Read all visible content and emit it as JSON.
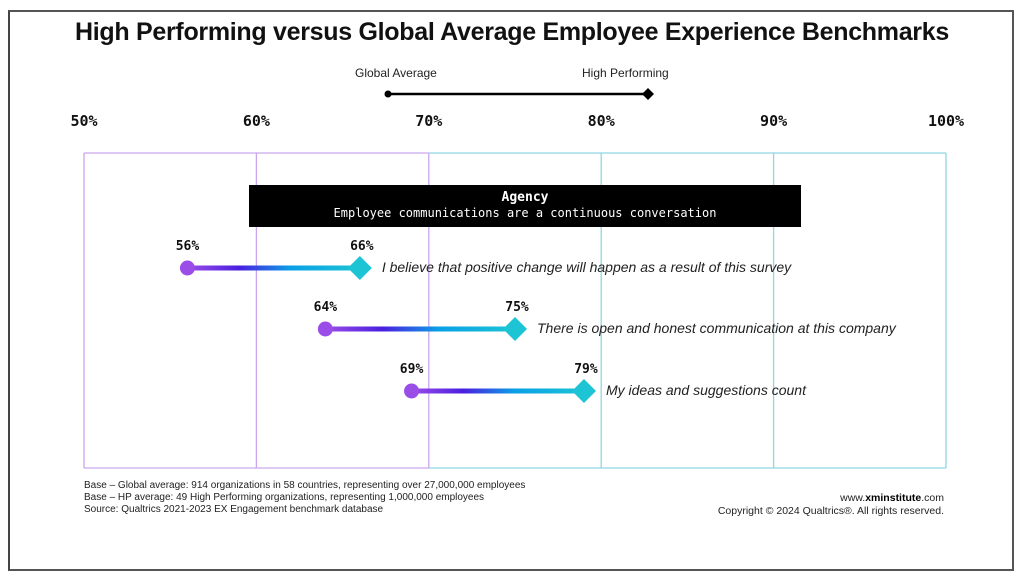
{
  "chart_data": {
    "type": "dumbbell",
    "title": "High Performing versus Global Average Employee Experience Benchmarks",
    "legend": {
      "start_label": "Global Average",
      "end_label": "High Performing",
      "placement": "top-center"
    },
    "x_ticks": [
      "50%",
      "60%",
      "70%",
      "80%",
      "90%",
      "100%"
    ],
    "xlim": [
      50,
      100
    ],
    "grid": true,
    "section": {
      "title": "Agency",
      "subtitle": "Employee communications are a continuous conversation"
    },
    "rows": [
      {
        "label": "I believe that positive change will happen as a result of this survey",
        "global_average": 56,
        "high_performing": 66,
        "global_label": "56%",
        "hp_label": "66%"
      },
      {
        "label": "There is open and honest communication at this company",
        "global_average": 64,
        "high_performing": 75,
        "global_label": "64%",
        "hp_label": "75%"
      },
      {
        "label": "My ideas and suggestions count",
        "global_average": 69,
        "high_performing": 79,
        "global_label": "69%",
        "hp_label": "79%"
      }
    ],
    "colors": {
      "start": "#9b4de8",
      "mid": "#4a1fe0",
      "end": "#1cc4d4",
      "grid_low": "#c9a6ee",
      "grid_high": "#8fd7e4"
    }
  },
  "footer": {
    "notes": [
      "Base – Global average: 914 organizations in 58 countries, representing over 27,000,000 employees",
      "Base – HP average: 49 High Performing organizations,  representing 1,000,000 employees",
      "Source: Qualtrics 2021-2023 EX Engagement benchmark database"
    ],
    "site_prefix": "www.",
    "site_bold": "xminstitute",
    "site_suffix": ".com",
    "copyright": "Copyright © 2024 Qualtrics®. All rights reserved."
  }
}
